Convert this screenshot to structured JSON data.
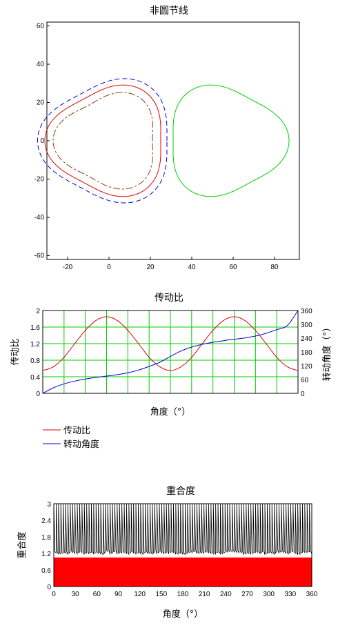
{
  "colors": {
    "red": "#e00000",
    "blue": "#0000cc",
    "green": "#00cc00",
    "brown": "#8b3a0a",
    "black": "#000000",
    "fill_red": "#ff0000"
  },
  "chart_data": [
    {
      "type": "line",
      "title": "非圆节线",
      "xlim": [
        -30,
        92
      ],
      "ylim": [
        -62,
        62
      ],
      "xticks": [
        "-20",
        "0",
        "20",
        "40",
        "60",
        "80"
      ],
      "yticks": [
        "60",
        "40",
        "20",
        "0",
        "-20",
        "-40",
        "-60"
      ],
      "grid": false,
      "series": [
        {
          "role": "driving-pitch-curve",
          "color": "red",
          "style": "solid",
          "lobes": 3,
          "center": [
            0,
            0
          ],
          "radius_min": 25,
          "radius_max": 31
        },
        {
          "role": "outer-offset-curve",
          "color": "blue",
          "style": "dashed",
          "lobes": 3,
          "center": [
            0,
            0
          ],
          "radius_min": 28,
          "radius_max": 34.5
        },
        {
          "role": "inner-offset-curve",
          "color": "brown",
          "style": "dashdot",
          "lobes": 3,
          "center": [
            0,
            0
          ],
          "radius_min": 21,
          "radius_max": 27
        },
        {
          "role": "driven-pitch-curve",
          "color": "green",
          "style": "solid",
          "lobes": 3,
          "center": [
            56,
            0
          ],
          "radius_min": 25,
          "radius_max": 31
        }
      ]
    },
    {
      "type": "line",
      "title": "传动比",
      "xlabel": "角度（°）",
      "ylabel_left": "传动比",
      "ylabel_right": "转动角度（°）",
      "xlim": [
        0,
        360
      ],
      "ylim_left": [
        0,
        2
      ],
      "ylim_right": [
        0,
        360
      ],
      "yticks_left": [
        "2",
        "1.6",
        "1.2",
        "0.8",
        "0.4",
        "0"
      ],
      "yticks_right": [
        "360",
        "300",
        "240",
        "180",
        "120",
        "60",
        "0"
      ],
      "grid": true,
      "legend_position": "bottom-left",
      "series": [
        {
          "name": "传动比",
          "color": "red",
          "axis": "left",
          "x": [
            0,
            15,
            30,
            45,
            60,
            75,
            90,
            105,
            120,
            135,
            150,
            165,
            180,
            195,
            210,
            225,
            240,
            255,
            270,
            285,
            300,
            315,
            330,
            345,
            360
          ],
          "y": [
            0.55,
            0.64,
            0.87,
            1.2,
            1.52,
            1.76,
            1.85,
            1.76,
            1.52,
            1.2,
            0.87,
            0.64,
            0.55,
            0.64,
            0.87,
            1.2,
            1.52,
            1.76,
            1.85,
            1.76,
            1.52,
            1.2,
            0.87,
            0.64,
            0.55
          ]
        },
        {
          "name": "转动角度",
          "color": "blue",
          "axis": "right",
          "x": [
            0,
            15,
            30,
            45,
            60,
            75,
            90,
            105,
            120,
            135,
            150,
            165,
            180,
            195,
            210,
            225,
            240,
            255,
            270,
            285,
            300,
            315,
            330,
            345,
            360
          ],
          "y": [
            0,
            24,
            41,
            53,
            62,
            69,
            75,
            81,
            89,
            101,
            117,
            135,
            160,
            184,
            201,
            213,
            222,
            229,
            235,
            241,
            249,
            261,
            277,
            295,
            360
          ]
        }
      ]
    },
    {
      "type": "area",
      "title": "重合度",
      "xlabel": "角度（°）",
      "ylabel": "重合度",
      "xlim": [
        0,
        360
      ],
      "ylim": [
        0,
        3
      ],
      "xticks": [
        "0",
        "30",
        "60",
        "90",
        "120",
        "150",
        "180",
        "210",
        "240",
        "270",
        "300",
        "330",
        "360"
      ],
      "yticks": [
        "3",
        "2.4",
        "1.8",
        "1.2",
        "0.6",
        "0"
      ],
      "series": [
        {
          "role": "base-fill",
          "color": "fill_red",
          "value": 1.05
        },
        {
          "role": "contact-ratio-oscillation",
          "color": "black",
          "min": 1.15,
          "max": 3.0,
          "pulses": 110
        }
      ]
    }
  ]
}
